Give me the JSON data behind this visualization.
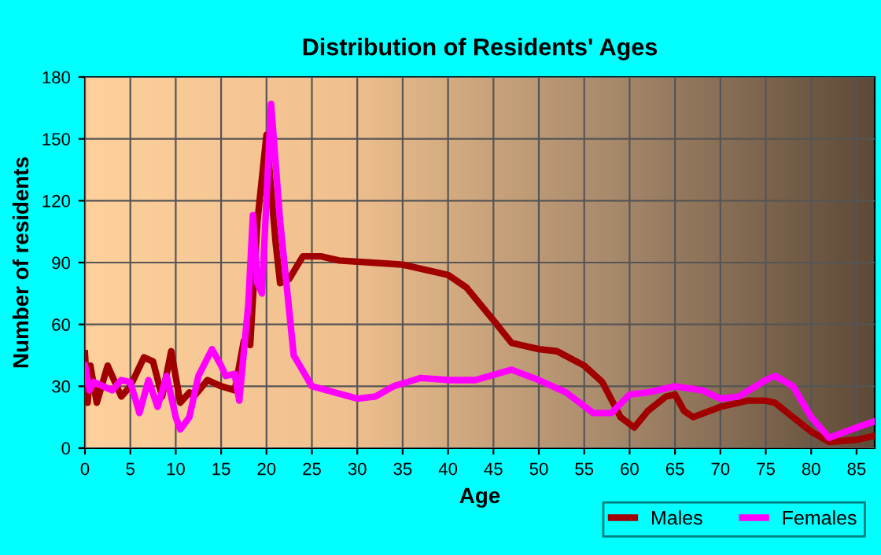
{
  "chart_data": {
    "type": "line",
    "title": "Distribution of Residents' Ages",
    "xlabel": "Age",
    "ylabel": "Number of residents",
    "xlim": [
      0,
      87
    ],
    "xticks": [
      0,
      5,
      10,
      15,
      20,
      25,
      30,
      35,
      40,
      45,
      50,
      55,
      60,
      65,
      70,
      75,
      80,
      85
    ],
    "ylim": [
      0,
      180
    ],
    "yticks": [
      0,
      30,
      60,
      90,
      120,
      150,
      180
    ],
    "grid": true,
    "legend": "bottom right",
    "marker": "none",
    "line_style": "solid",
    "series": [
      {
        "name": "Males",
        "color": "#a00000",
        "x": [
          0,
          0.3,
          0.6,
          1.3,
          2.5,
          4,
          5,
          6.5,
          7.5,
          8.5,
          9.5,
          10.5,
          11.5,
          12,
          13.5,
          15,
          16.5,
          17.5,
          18.2,
          19,
          20,
          21,
          21.5,
          22.5,
          24,
          26,
          28,
          35,
          40,
          42,
          45,
          47,
          50,
          52,
          55,
          57,
          59,
          60.5,
          62,
          64,
          65,
          66,
          67,
          70,
          73,
          75,
          76,
          80,
          82,
          85,
          87
        ],
        "values": [
          46,
          22,
          40,
          22,
          40,
          25,
          30,
          44,
          42,
          25,
          47,
          22,
          27,
          25,
          33,
          30,
          28,
          52,
          50,
          110,
          152,
          100,
          80,
          82,
          93,
          93,
          91,
          89,
          84,
          78,
          62,
          51,
          48,
          47,
          40,
          32,
          15,
          10,
          18,
          25,
          26,
          18,
          15,
          20,
          23,
          23,
          22,
          8,
          3,
          4,
          6
        ]
      },
      {
        "name": "Females",
        "color": "#ff00ff",
        "x": [
          0,
          0.5,
          1,
          2,
          3,
          4,
          5,
          6,
          7,
          8,
          9,
          10,
          10.5,
          11.5,
          12.5,
          14,
          15,
          15.5,
          16.5,
          17,
          18,
          18.5,
          19,
          19.5,
          20.5,
          21.5,
          23,
          25,
          30,
          32,
          34,
          37,
          40,
          43,
          47,
          50,
          53,
          56,
          58,
          60,
          62,
          65,
          68,
          70,
          72,
          75,
          76,
          78,
          80,
          82,
          85,
          87
        ],
        "values": [
          40,
          28,
          32,
          30,
          28,
          33,
          32,
          17,
          33,
          20,
          35,
          15,
          9,
          15,
          35,
          48,
          40,
          35,
          36,
          23,
          70,
          113,
          80,
          75,
          167,
          110,
          45,
          30,
          24,
          25,
          30,
          34,
          33,
          33,
          38,
          33,
          27,
          17,
          17,
          26,
          27,
          30,
          28,
          24,
          25,
          33,
          35,
          30,
          15,
          5,
          10,
          13
        ]
      }
    ]
  }
}
